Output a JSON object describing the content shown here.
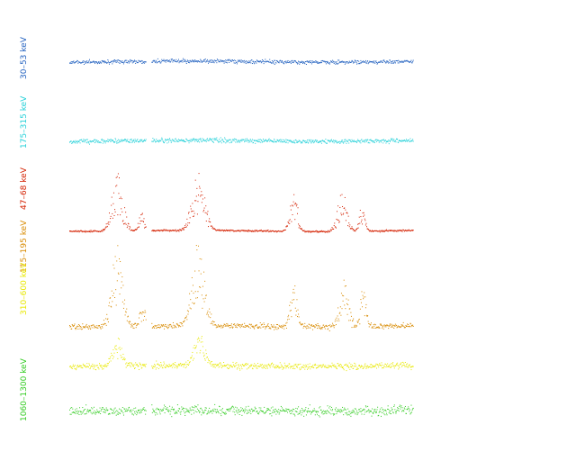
{
  "chart_data": {
    "type": "scatter",
    "title": "",
    "xlabel": "",
    "ylabel": "",
    "grid": false,
    "legend": "none",
    "series": [
      {
        "name": "30–53 keV",
        "color": "#1f5fbf",
        "level": 68,
        "noise": 2.2,
        "bursts": [],
        "gaps": [
          [
            162,
            168
          ]
        ]
      },
      {
        "name": "175–315 keV",
        "color": "#22d0d8",
        "level": 156,
        "noise": 2.6,
        "bursts": [],
        "gaps": [
          [
            162,
            168
          ]
        ]
      },
      {
        "name": "47–68 keV",
        "color": "#d42000",
        "level": 256,
        "noise": 1.0,
        "bursts": [
          {
            "x": 130,
            "peak": 55,
            "w": 6
          },
          {
            "x": 220,
            "peak": 55,
            "w": 7
          },
          {
            "x": 326,
            "peak": 42,
            "w": 4
          },
          {
            "x": 380,
            "peak": 38,
            "w": 5
          },
          {
            "x": 402,
            "peak": 25,
            "w": 3
          },
          {
            "x": 157,
            "peak": 18,
            "w": 3
          }
        ],
        "gaps": [
          [
            162,
            168
          ]
        ]
      },
      {
        "name": "115–195 keV",
        "color": "#d88a00",
        "level": 362,
        "noise": 3.2,
        "bursts": [
          {
            "x": 130,
            "peak": 80,
            "w": 6
          },
          {
            "x": 220,
            "peak": 82,
            "w": 7
          },
          {
            "x": 326,
            "peak": 40,
            "w": 4
          },
          {
            "x": 382,
            "peak": 45,
            "w": 5
          },
          {
            "x": 403,
            "peak": 40,
            "w": 3
          },
          {
            "x": 158,
            "peak": 20,
            "w": 3
          }
        ],
        "gaps": [
          [
            162,
            168
          ]
        ]
      },
      {
        "name": "310–600 keV",
        "color": "#e8e800",
        "level": 406,
        "noise": 3.5,
        "bursts": [
          {
            "x": 130,
            "peak": 30,
            "w": 5
          },
          {
            "x": 221,
            "peak": 30,
            "w": 6
          }
        ],
        "gaps": [
          [
            162,
            168
          ]
        ]
      },
      {
        "name": "1060–1300 keV",
        "color": "#33cc22",
        "level": 456,
        "noise": 5.5,
        "bursts": [],
        "gaps": [
          [
            162,
            168
          ]
        ]
      }
    ],
    "labels": [
      {
        "text": "30–53 keV",
        "color": "#1f5fbf"
      },
      {
        "text": "175–315 keV",
        "color": "#22d0d8"
      },
      {
        "text": "47–68 keV",
        "color": "#d42000"
      },
      {
        "text": "115–195 keV",
        "color": "#d88a00"
      },
      {
        "text": "310–600 keV",
        "color": "#e8e800"
      },
      {
        "text": "1060–1300 keV",
        "color": "#33cc22"
      }
    ]
  }
}
